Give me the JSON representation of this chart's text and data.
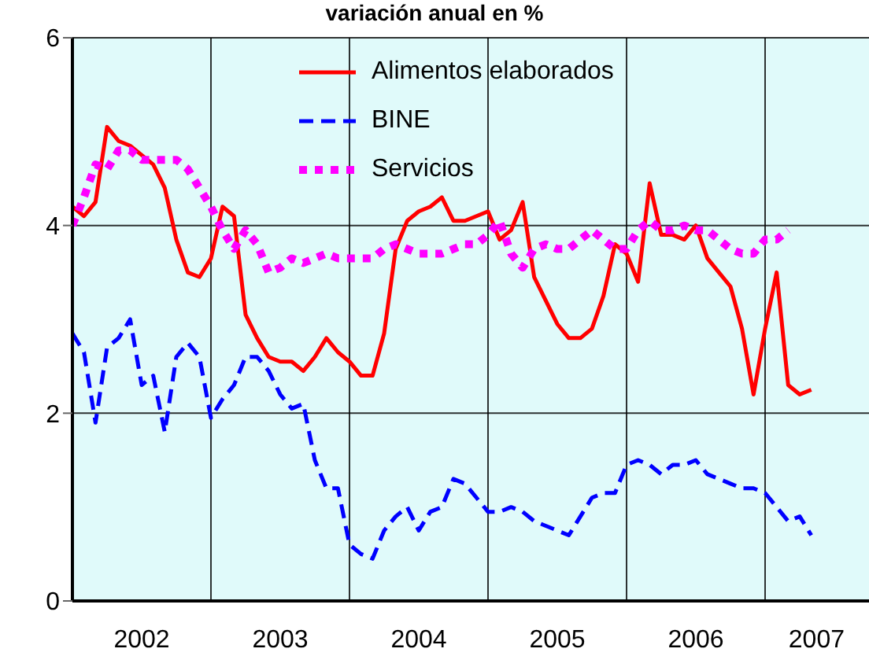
{
  "chart_data": {
    "type": "line",
    "title": "variación anual en %",
    "x": [
      "2002-01",
      "2002-02",
      "2002-03",
      "2002-04",
      "2002-05",
      "2002-06",
      "2002-07",
      "2002-08",
      "2002-09",
      "2002-10",
      "2002-11",
      "2002-12",
      "2003-01",
      "2003-02",
      "2003-03",
      "2003-04",
      "2003-05",
      "2003-06",
      "2003-07",
      "2003-08",
      "2003-09",
      "2003-10",
      "2003-11",
      "2003-12",
      "2004-01",
      "2004-02",
      "2004-03",
      "2004-04",
      "2004-05",
      "2004-06",
      "2004-07",
      "2004-08",
      "2004-09",
      "2004-10",
      "2004-11",
      "2004-12",
      "2005-01",
      "2005-02",
      "2005-03",
      "2005-04",
      "2005-05",
      "2005-06",
      "2005-07",
      "2005-08",
      "2005-09",
      "2005-10",
      "2005-11",
      "2005-12",
      "2006-01",
      "2006-02",
      "2006-03",
      "2006-04",
      "2006-05",
      "2006-06",
      "2006-07",
      "2006-08",
      "2006-09",
      "2006-10",
      "2006-11",
      "2006-12",
      "2007-01",
      "2007-02",
      "2007-03",
      "2007-04",
      "2007-05"
    ],
    "series": [
      {
        "name": "Alimentos elaborados",
        "color": "#ff0000",
        "line_style": "solid",
        "values": [
          4.2,
          4.1,
          4.25,
          5.05,
          4.9,
          4.85,
          4.75,
          4.65,
          4.4,
          3.85,
          3.5,
          3.45,
          3.65,
          4.2,
          4.1,
          3.05,
          2.8,
          2.6,
          2.55,
          2.55,
          2.45,
          2.6,
          2.8,
          2.65,
          2.55,
          2.4,
          2.4,
          2.85,
          3.75,
          4.05,
          4.15,
          4.2,
          4.3,
          4.05,
          4.05,
          4.1,
          4.15,
          3.85,
          3.95,
          4.25,
          3.45,
          3.2,
          2.95,
          2.8,
          2.8,
          2.9,
          3.25,
          3.8,
          3.7,
          3.4,
          4.45,
          3.9,
          3.9,
          3.85,
          4.0,
          3.65,
          3.5,
          3.35,
          2.9,
          2.2,
          2.9,
          3.5,
          2.3,
          2.2,
          2.25
        ]
      },
      {
        "name": "BINE",
        "color": "#0000ff",
        "line_style": "dashed",
        "values": [
          2.85,
          2.65,
          1.9,
          2.7,
          2.8,
          3.0,
          2.3,
          2.4,
          1.8,
          2.6,
          2.75,
          2.6,
          1.95,
          2.15,
          2.3,
          2.6,
          2.6,
          2.45,
          2.2,
          2.05,
          2.1,
          1.5,
          1.2,
          1.2,
          0.6,
          0.5,
          0.45,
          0.75,
          0.9,
          1.0,
          0.75,
          0.95,
          1.0,
          1.3,
          1.25,
          1.1,
          0.95,
          0.95,
          1.0,
          0.95,
          0.85,
          0.8,
          0.75,
          0.7,
          0.9,
          1.1,
          1.15,
          1.15,
          1.45,
          1.5,
          1.45,
          1.35,
          1.45,
          1.45,
          1.5,
          1.35,
          1.3,
          1.25,
          1.2,
          1.2,
          1.15,
          1.0,
          0.85,
          0.9,
          0.7
        ]
      },
      {
        "name": "Servicios",
        "color": "#ff00ff",
        "line_style": "dotted",
        "values": [
          4.0,
          4.3,
          4.65,
          4.6,
          4.8,
          4.8,
          4.7,
          4.7,
          4.7,
          4.7,
          4.6,
          4.4,
          4.2,
          3.95,
          3.75,
          3.95,
          3.8,
          3.5,
          3.55,
          3.65,
          3.6,
          3.65,
          3.7,
          3.65,
          3.65,
          3.65,
          3.65,
          3.75,
          3.8,
          3.75,
          3.7,
          3.7,
          3.7,
          3.75,
          3.8,
          3.8,
          3.9,
          4.05,
          3.7,
          3.55,
          3.75,
          3.8,
          3.75,
          3.75,
          3.85,
          3.95,
          3.85,
          3.75,
          3.75,
          3.95,
          4.05,
          3.95,
          3.95,
          4.0,
          3.95,
          3.95,
          3.85,
          3.75,
          3.7,
          3.7,
          3.85,
          3.85,
          3.95,
          null,
          null
        ]
      }
    ],
    "xlim": [
      "2002-01",
      "2007-10"
    ],
    "xticks": [
      {
        "value": "2002-07",
        "label": "2002"
      },
      {
        "value": "2003-01",
        "label": null
      },
      {
        "value": "2003-07",
        "label": "2003"
      },
      {
        "value": "2004-01",
        "label": null
      },
      {
        "value": "2004-07",
        "label": "2004"
      },
      {
        "value": "2005-01",
        "label": null
      },
      {
        "value": "2005-07",
        "label": "2005"
      },
      {
        "value": "2006-01",
        "label": null
      },
      {
        "value": "2006-07",
        "label": "2006"
      },
      {
        "value": "2007-01",
        "label": null
      },
      {
        "value": "2007-05-15",
        "label": "2007"
      }
    ],
    "ylim": [
      0,
      6
    ],
    "yticks": [
      0,
      2,
      4,
      6
    ],
    "grid": true,
    "legend": "top",
    "marker": "none"
  }
}
